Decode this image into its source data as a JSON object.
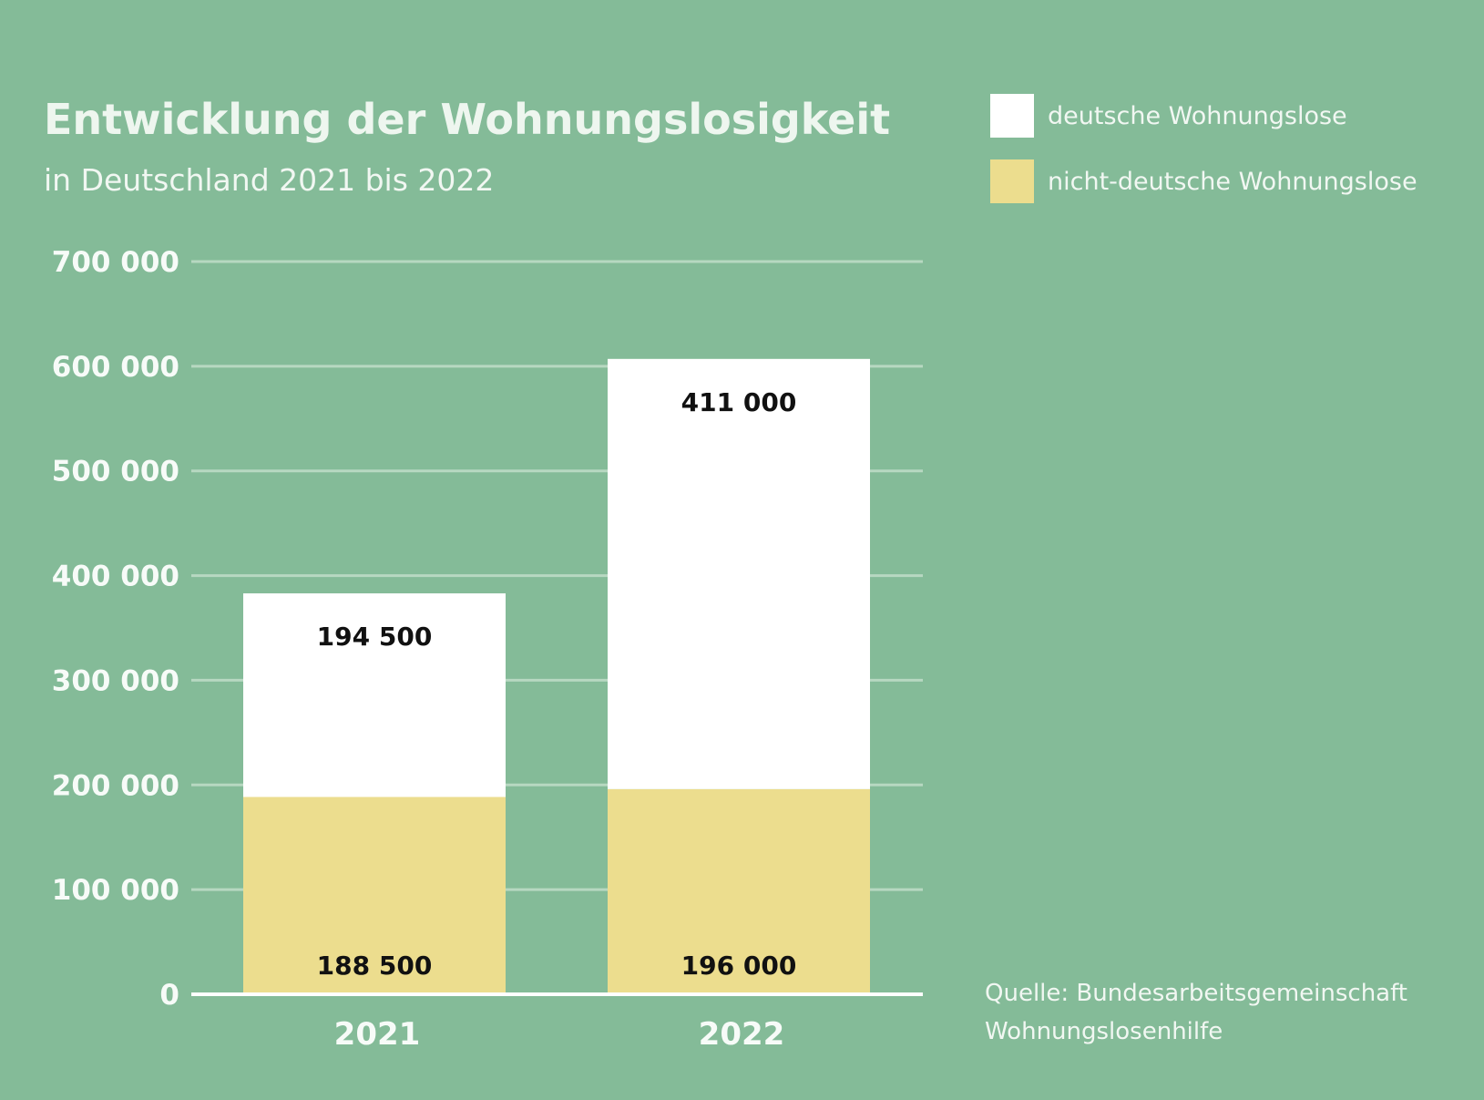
{
  "chart_data": {
    "type": "bar",
    "stacked": true,
    "title": "Entwicklung der Wohnungslosigkeit",
    "subtitle": "in Deutschland 2021 bis 2022",
    "categories": [
      "2021",
      "2022"
    ],
    "series": [
      {
        "name": "nicht-deutsche Wohnungslose",
        "values": [
          188500,
          196000
        ],
        "value_labels": [
          "188 500",
          "196 000"
        ],
        "color": "#ecdd8e"
      },
      {
        "name": "deutsche Wohnungslose",
        "values": [
          194500,
          411000
        ],
        "value_labels": [
          "194 500",
          "411 000"
        ],
        "color": "#ffffff"
      }
    ],
    "ylim": [
      0,
      700000
    ],
    "yticks": [
      0,
      100000,
      200000,
      300000,
      400000,
      500000,
      600000,
      700000
    ],
    "ytick_labels": [
      "0",
      "100 000",
      "200 000",
      "300 000",
      "400 000",
      "500 000",
      "600 000",
      "700 000"
    ],
    "grid": true,
    "legend_position": "top-right",
    "source": [
      "Quelle: Bundesarbeitsgemeinschaft",
      "Wohnungslosenhilfe"
    ],
    "colors": {
      "background": "#84bb98",
      "gridline": "#b7d8c1",
      "axis": "#ffffff",
      "text_light": "#f1f7f2",
      "value_text": "#111111"
    }
  }
}
